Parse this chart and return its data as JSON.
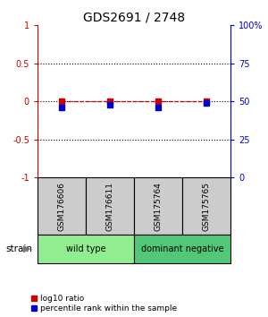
{
  "title": "GDS2691 / 2748",
  "samples": [
    "GSM176606",
    "GSM176611",
    "GSM175764",
    "GSM175765"
  ],
  "log10_ratio": [
    0.0,
    0.0,
    0.0,
    0.0
  ],
  "percentile_rank": [
    46,
    48,
    46,
    49
  ],
  "groups": [
    {
      "label": "wild type",
      "samples": [
        0,
        1
      ],
      "color": "#90EE90"
    },
    {
      "label": "dominant negative",
      "samples": [
        2,
        3
      ],
      "color": "#50C878"
    }
  ],
  "ylim_left": [
    -1,
    1
  ],
  "ylim_right": [
    0,
    100
  ],
  "yticks_left": [
    -1,
    -0.5,
    0,
    0.5,
    1
  ],
  "yticks_right": [
    0,
    25,
    50,
    75,
    100
  ],
  "ytick_labels_right": [
    "0",
    "25",
    "50",
    "75",
    "100%"
  ],
  "hlines": [
    -0.5,
    0,
    0.5
  ],
  "red_color": "#cc0000",
  "blue_color": "#0000cc",
  "legend_red_label": "log10 ratio",
  "legend_blue_label": "percentile rank within the sample",
  "strain_label": "strain",
  "background_color": "#ffffff",
  "sample_box_color": "#cccccc"
}
